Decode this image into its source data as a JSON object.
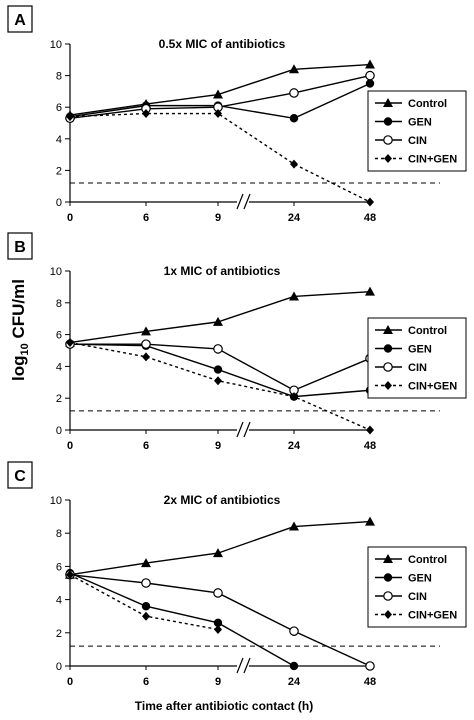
{
  "figure": {
    "ylabel_main": "log",
    "ylabel_sub": "10",
    "ylabel_tail": " CFU/ml",
    "xlabel": "Time after antibiotic contact (h)"
  },
  "chart_data": [
    {
      "type": "line",
      "panel_letter": "A",
      "title": "0.5x MIC of antibiotics",
      "categories": [
        "0",
        "6",
        "9",
        "24",
        "48"
      ],
      "axis_break_between": [
        "9",
        "24"
      ],
      "ylim": [
        0,
        10
      ],
      "yticks": [
        0,
        2,
        4,
        6,
        8,
        10
      ],
      "grid": false,
      "legend_position": "right",
      "reference_line_y": 1.2,
      "series": [
        {
          "name": "Control",
          "marker": "triangle",
          "line": "solid",
          "values": [
            5.5,
            6.2,
            6.8,
            8.4,
            8.7
          ]
        },
        {
          "name": "GEN",
          "marker": "filled-circle",
          "line": "solid",
          "values": [
            5.4,
            6.1,
            6.1,
            5.3,
            7.5
          ]
        },
        {
          "name": "CIN",
          "marker": "open-circle",
          "line": "solid",
          "values": [
            5.3,
            5.9,
            6.0,
            6.9,
            8.0
          ]
        },
        {
          "name": "CIN+GEN",
          "marker": "diamond",
          "line": "dotted",
          "values": [
            5.4,
            5.6,
            5.6,
            2.4,
            0.0
          ]
        }
      ]
    },
    {
      "type": "line",
      "panel_letter": "B",
      "title": "1x MIC of antibiotics",
      "categories": [
        "0",
        "6",
        "9",
        "24",
        "48"
      ],
      "axis_break_between": [
        "9",
        "24"
      ],
      "ylim": [
        0,
        10
      ],
      "yticks": [
        0,
        2,
        4,
        6,
        8,
        10
      ],
      "grid": false,
      "legend_position": "right",
      "reference_line_y": 1.2,
      "series": [
        {
          "name": "Control",
          "marker": "triangle",
          "line": "solid",
          "values": [
            5.5,
            6.2,
            6.8,
            8.4,
            8.7
          ]
        },
        {
          "name": "GEN",
          "marker": "filled-circle",
          "line": "solid",
          "values": [
            5.4,
            5.3,
            3.8,
            2.1,
            2.5
          ]
        },
        {
          "name": "CIN",
          "marker": "open-circle",
          "line": "solid",
          "values": [
            5.4,
            5.4,
            5.1,
            2.5,
            4.5
          ]
        },
        {
          "name": "CIN+GEN",
          "marker": "diamond",
          "line": "dotted",
          "values": [
            5.5,
            4.6,
            3.1,
            2.1,
            0.0
          ]
        }
      ]
    },
    {
      "type": "line",
      "panel_letter": "C",
      "title": "2x MIC of antibiotics",
      "categories": [
        "0",
        "6",
        "9",
        "24",
        "48"
      ],
      "axis_break_between": [
        "9",
        "24"
      ],
      "ylim": [
        0,
        10
      ],
      "yticks": [
        0,
        2,
        4,
        6,
        8,
        10
      ],
      "grid": false,
      "legend_position": "right",
      "reference_line_y": 1.2,
      "series": [
        {
          "name": "Control",
          "marker": "triangle",
          "line": "solid",
          "values": [
            5.5,
            6.2,
            6.8,
            8.4,
            8.7
          ]
        },
        {
          "name": "GEN",
          "marker": "filled-circle",
          "line": "solid",
          "values": [
            5.6,
            3.6,
            2.6,
            0.0,
            null
          ]
        },
        {
          "name": "CIN",
          "marker": "open-circle",
          "line": "solid",
          "values": [
            5.5,
            5.0,
            4.4,
            2.1,
            0.0
          ]
        },
        {
          "name": "CIN+GEN",
          "marker": "diamond",
          "line": "dotted",
          "values": [
            5.5,
            3.0,
            2.2,
            null,
            null
          ]
        }
      ]
    }
  ]
}
